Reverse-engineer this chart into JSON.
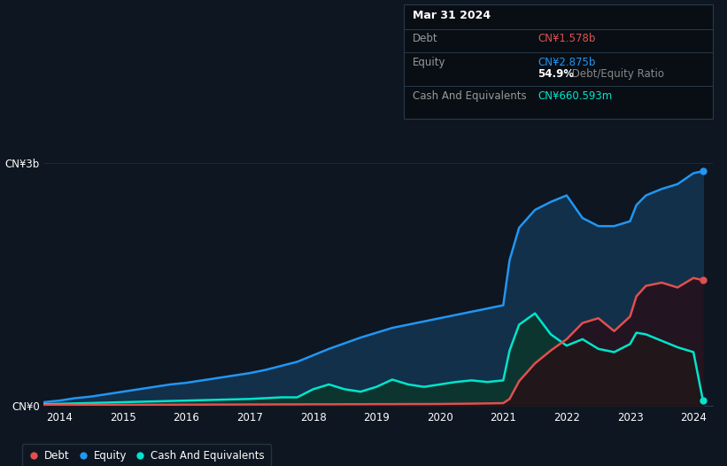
{
  "bg_color": "#0e1621",
  "plot_bg_color": "#0e1621",
  "grid_color": "#1c2b3a",
  "ylabel_top": "CN¥3b",
  "ylabel_bottom": "CN¥0",
  "xlabel_ticks": [
    "2014",
    "2015",
    "2016",
    "2017",
    "2018",
    "2019",
    "2020",
    "2021",
    "2022",
    "2023",
    "2024"
  ],
  "tooltip": {
    "date": "Mar 31 2024",
    "debt_label": "Debt",
    "debt_value": "CN¥1.578b",
    "debt_color": "#e05050",
    "equity_label": "Equity",
    "equity_value": "CN¥2.875b",
    "equity_color": "#2196f3",
    "ratio_value": "54.9%",
    "ratio_label": " Debt/Equity Ratio",
    "ratio_color_pct": "#ffffff",
    "ratio_color_text": "#888888",
    "cash_label": "Cash And Equivalents",
    "cash_value": "CN¥660.593m",
    "cash_color": "#00e5cc"
  },
  "legend": [
    {
      "label": "Debt",
      "color": "#e05050"
    },
    {
      "label": "Equity",
      "color": "#2196f3"
    },
    {
      "label": "Cash And Equivalents",
      "color": "#00e5cc"
    }
  ],
  "equity_color": "#2196f3",
  "equity_fill": "#12304a",
  "debt_color": "#e05050",
  "debt_fill": "#2a0a10",
  "cash_color": "#00e5cc",
  "cash_fill": "#0d3530",
  "years": [
    2013.75,
    2014.0,
    2014.25,
    2014.5,
    2014.75,
    2015.0,
    2015.25,
    2015.5,
    2015.75,
    2016.0,
    2016.25,
    2016.5,
    2016.75,
    2017.0,
    2017.25,
    2017.5,
    2017.75,
    2018.0,
    2018.25,
    2018.5,
    2018.75,
    2019.0,
    2019.25,
    2019.5,
    2019.75,
    2020.0,
    2020.25,
    2020.5,
    2020.75,
    2021.0,
    2021.1,
    2021.25,
    2021.5,
    2021.75,
    2022.0,
    2022.25,
    2022.5,
    2022.75,
    2023.0,
    2023.1,
    2023.25,
    2023.5,
    2023.75,
    2024.0,
    2024.15
  ],
  "equity": [
    0.04,
    0.06,
    0.09,
    0.11,
    0.14,
    0.17,
    0.2,
    0.23,
    0.26,
    0.28,
    0.31,
    0.34,
    0.37,
    0.4,
    0.44,
    0.49,
    0.54,
    0.62,
    0.7,
    0.77,
    0.84,
    0.9,
    0.96,
    1.0,
    1.04,
    1.08,
    1.12,
    1.16,
    1.2,
    1.24,
    1.8,
    2.2,
    2.42,
    2.52,
    2.6,
    2.32,
    2.22,
    2.22,
    2.28,
    2.48,
    2.6,
    2.68,
    2.74,
    2.875,
    2.9
  ],
  "cash": [
    0.015,
    0.02,
    0.025,
    0.03,
    0.035,
    0.04,
    0.045,
    0.05,
    0.055,
    0.06,
    0.065,
    0.07,
    0.075,
    0.08,
    0.09,
    0.1,
    0.1,
    0.2,
    0.26,
    0.2,
    0.17,
    0.23,
    0.32,
    0.26,
    0.23,
    0.26,
    0.29,
    0.31,
    0.29,
    0.31,
    0.68,
    1.0,
    1.14,
    0.88,
    0.74,
    0.82,
    0.7,
    0.66,
    0.76,
    0.9,
    0.88,
    0.8,
    0.72,
    0.66,
    0.06
  ],
  "debt": [
    0.005,
    0.006,
    0.006,
    0.007,
    0.007,
    0.008,
    0.008,
    0.009,
    0.009,
    0.01,
    0.01,
    0.011,
    0.011,
    0.012,
    0.012,
    0.013,
    0.013,
    0.014,
    0.014,
    0.015,
    0.015,
    0.016,
    0.016,
    0.017,
    0.017,
    0.018,
    0.02,
    0.022,
    0.025,
    0.028,
    0.08,
    0.3,
    0.52,
    0.68,
    0.82,
    1.02,
    1.08,
    0.92,
    1.1,
    1.35,
    1.48,
    1.52,
    1.46,
    1.578,
    1.55
  ],
  "ylim": [
    0,
    3.0
  ],
  "xlim": [
    2013.75,
    2024.3
  ]
}
